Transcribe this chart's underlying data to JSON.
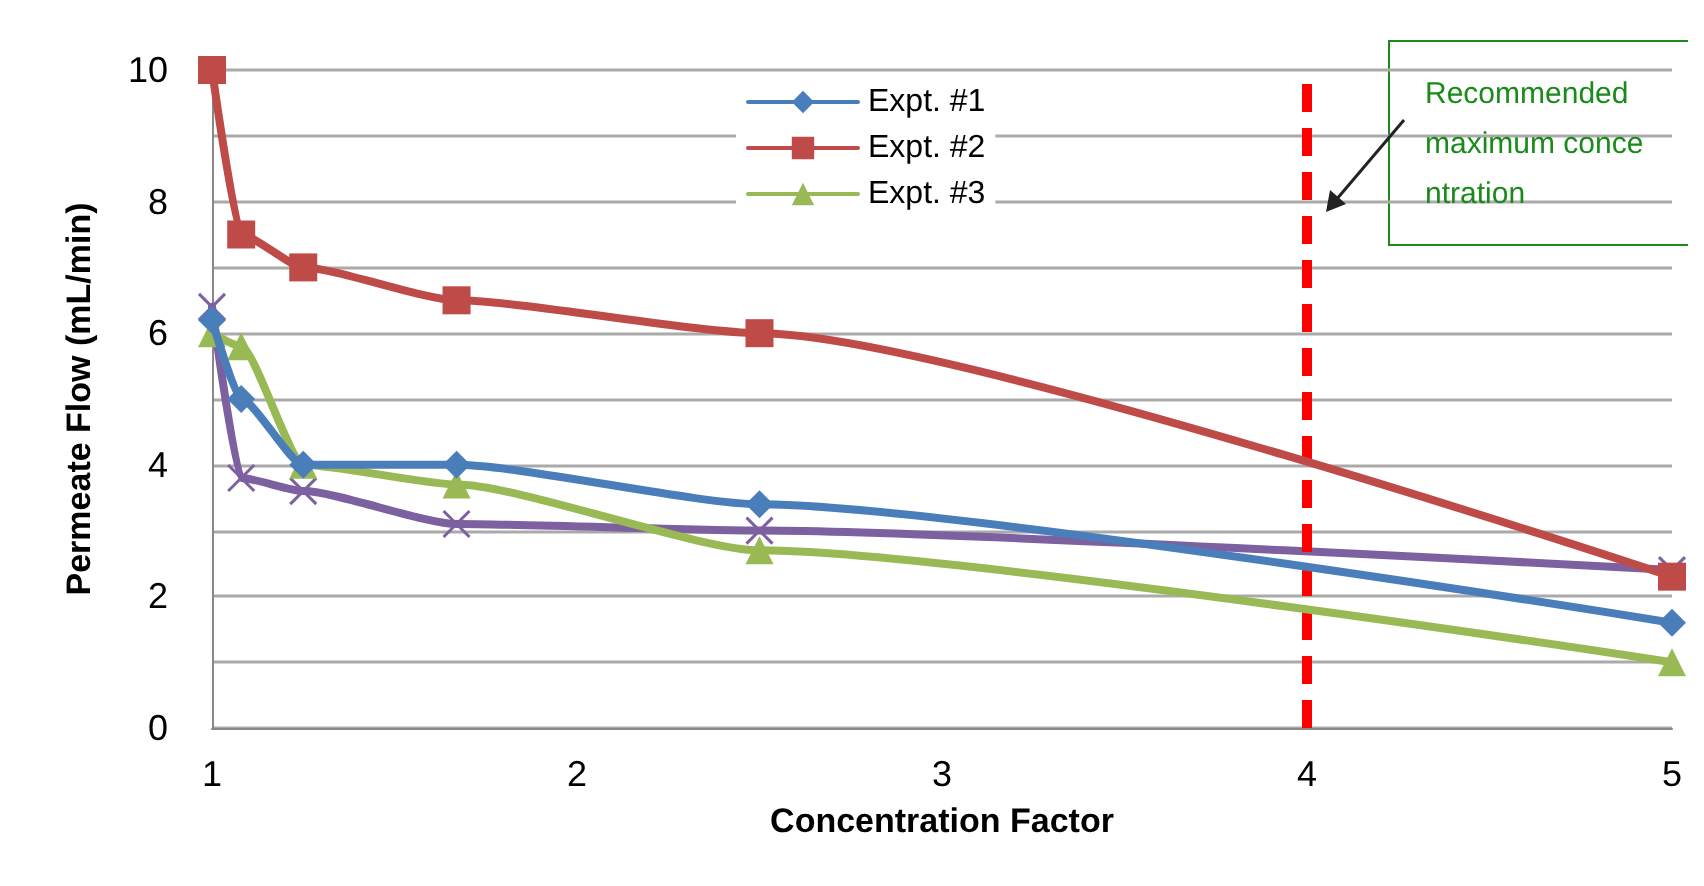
{
  "chart_data": {
    "type": "line",
    "xlabel": "Concentration Factor",
    "ylabel": "Permeate Flow (mL/min)",
    "x": [
      1,
      1.08,
      1.25,
      1.67,
      2.5,
      5
    ],
    "series": [
      {
        "name": "Expt. #1",
        "color": "#4a7ebb",
        "marker": "diamond",
        "values": [
          6.2,
          5.0,
          4.0,
          4.0,
          3.4,
          1.6
        ]
      },
      {
        "name": "Expt. #2",
        "color": "#be4b48",
        "marker": "square",
        "values": [
          10,
          7.5,
          7.0,
          6.5,
          6.0,
          2.3
        ]
      },
      {
        "name": "Expt. #3",
        "color": "#98b954",
        "marker": "triangle",
        "values": [
          6.0,
          5.8,
          4.0,
          3.7,
          2.7,
          1.0
        ]
      },
      {
        "color": "#7d60a0",
        "marker": "cross",
        "values": [
          6.4,
          3.8,
          3.6,
          3.1,
          3.0,
          2.4
        ]
      }
    ],
    "xlim": [
      1,
      5
    ],
    "xticks": [
      1,
      2,
      3,
      4,
      5
    ],
    "ylim": [
      0,
      10
    ],
    "yticks": [
      0,
      {
        "value": 1,
        "label": null
      },
      2,
      {
        "value": 3,
        "label": null
      },
      4,
      {
        "value": 5,
        "label": null
      },
      6,
      {
        "value": 7,
        "label": null
      },
      8,
      {
        "value": 9,
        "label": null
      },
      10
    ],
    "ref_lines": [
      {
        "axis": "x",
        "value": 4,
        "color": "#ff0000",
        "line_style": "dashed"
      }
    ],
    "annotations": [
      "Recommended maximum concentration"
    ],
    "grid": "y",
    "legend": "top",
    "line_style": "solid"
  }
}
